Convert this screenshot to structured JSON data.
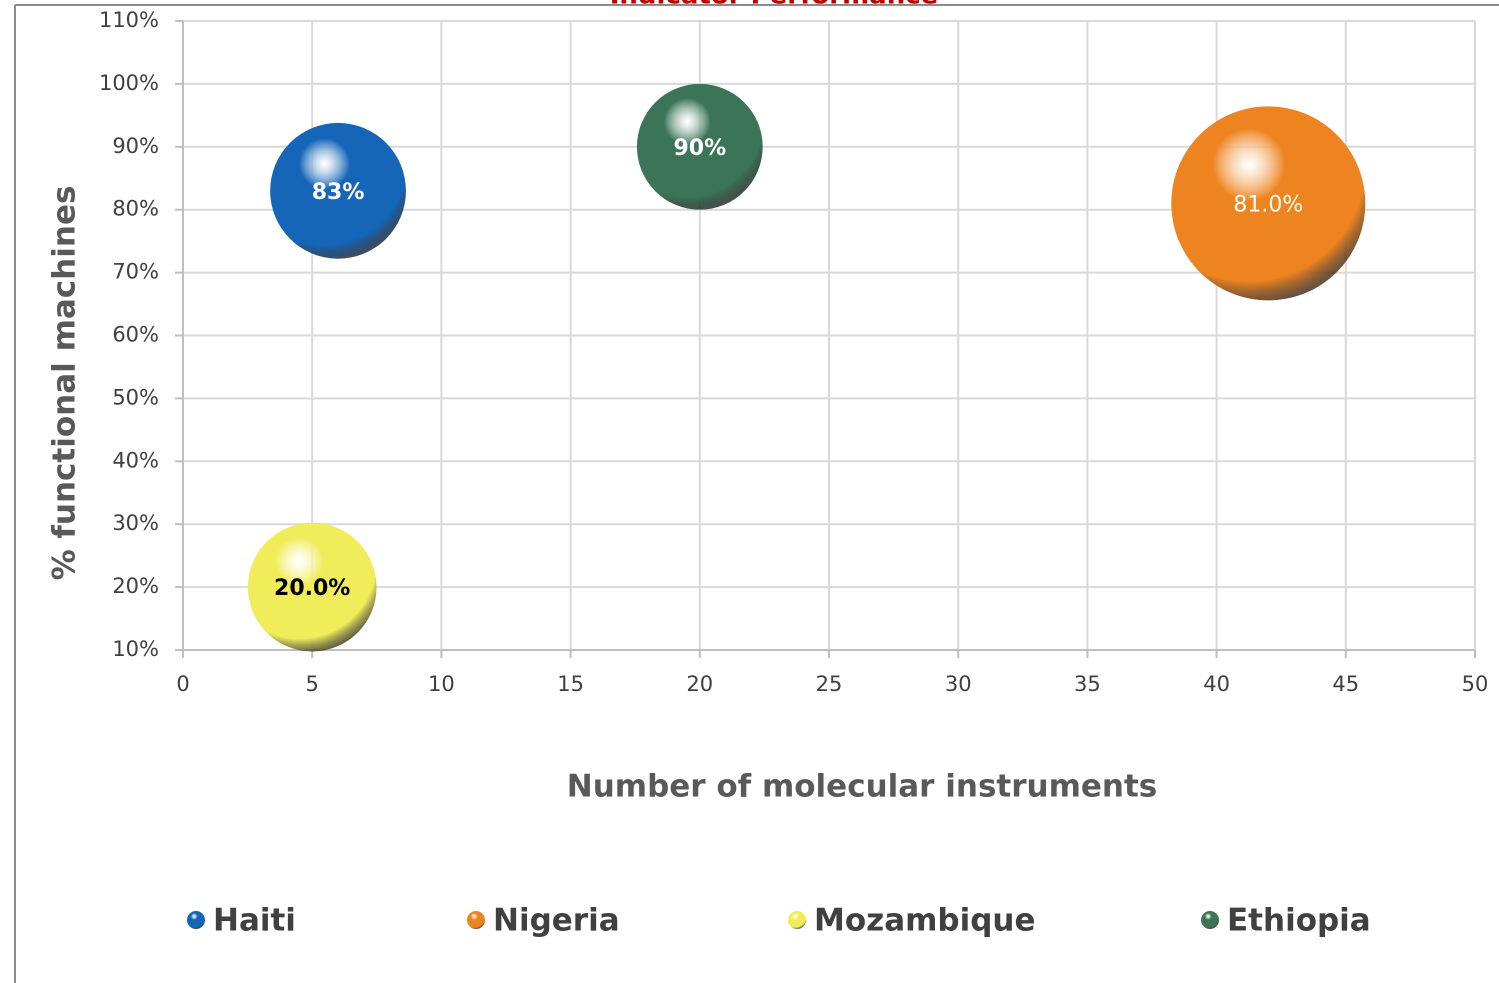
{
  "chart_data": {
    "type": "bubble",
    "title": "Indicator Performance",
    "xlabel": "Number of molecular instruments",
    "ylabel": "% functional machines",
    "xlim": [
      0,
      50
    ],
    "xticks": [
      0,
      5,
      10,
      15,
      20,
      25,
      30,
      35,
      40,
      45,
      50
    ],
    "ylim": [
      10,
      110
    ],
    "yticks": [
      {
        "value": 10,
        "label": "10%"
      },
      {
        "value": 20,
        "label": "20%"
      },
      {
        "value": 30,
        "label": "30%"
      },
      {
        "value": 40,
        "label": "40%"
      },
      {
        "value": 50,
        "label": "50%"
      },
      {
        "value": 60,
        "label": "60%"
      },
      {
        "value": 70,
        "label": "70%"
      },
      {
        "value": 80,
        "label": "80%"
      },
      {
        "value": 90,
        "label": "90%"
      },
      {
        "value": 100,
        "label": "100%"
      },
      {
        "value": 110,
        "label": "110%"
      }
    ],
    "grid": true,
    "legend": "bottom",
    "series": [
      {
        "name": "Haiti",
        "color": "#1565b8",
        "label_color": "#ffffff",
        "label_bold": true,
        "x": [
          6
        ],
        "values": [
          83
        ],
        "sizes": [
          49
        ],
        "value_labels": [
          "83%"
        ]
      },
      {
        "name": "Nigeria",
        "color": "#ee8420",
        "label_color": "#ffffff",
        "label_bold": false,
        "x": [
          42
        ],
        "values": [
          81
        ],
        "sizes": [
          100
        ],
        "value_labels": [
          "81.0%"
        ]
      },
      {
        "name": "Mozambique",
        "color": "#f1ec5a",
        "label_color": "#000000",
        "label_bold": true,
        "x": [
          5
        ],
        "values": [
          20
        ],
        "sizes": [
          44
        ],
        "value_labels": [
          "20.0%"
        ]
      },
      {
        "name": "Ethiopia",
        "color": "#3b7457",
        "label_color": "#ffffff",
        "label_bold": true,
        "x": [
          20
        ],
        "values": [
          90
        ],
        "sizes": [
          42
        ],
        "value_labels": [
          "90%"
        ]
      }
    ]
  }
}
